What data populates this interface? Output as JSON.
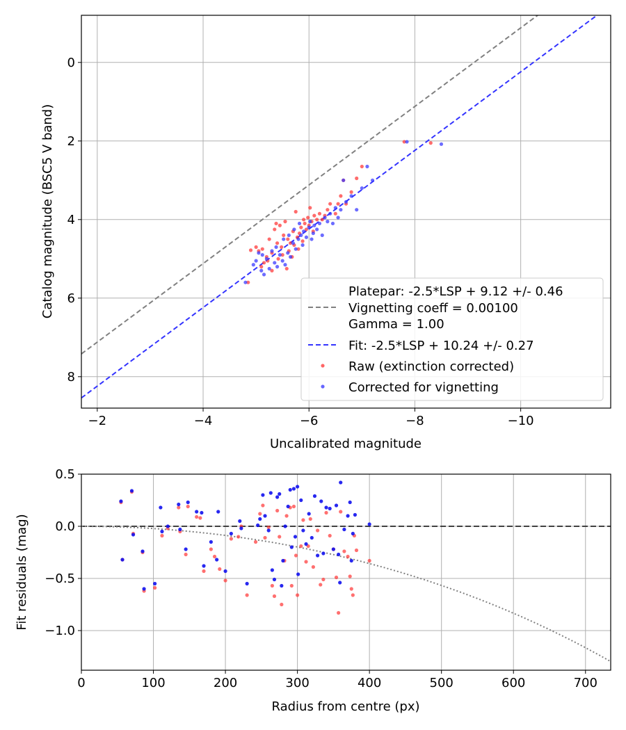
{
  "chart_data": [
    {
      "type": "scatter",
      "xlabel": "Uncalibrated magnitude",
      "ylabel": "Catalog magnitude (BSC5 V band)",
      "xlim": [
        -1.7,
        -11.7
      ],
      "ylim": [
        8.8,
        -1.2
      ],
      "x_inverted": true,
      "y_inverted": true,
      "xticks": [
        -2,
        -4,
        -6,
        -8,
        -10
      ],
      "xtick_labels": [
        "−2",
        "−4",
        "−6",
        "−8",
        "−10"
      ],
      "yticks": [
        0,
        2,
        4,
        6,
        8
      ],
      "ytick_labels": [
        "0",
        "2",
        "4",
        "6",
        "8"
      ],
      "grid": true,
      "legend_position": "lower-right",
      "legend": [
        {
          "label": "Platepar: -2.5*LSP + 9.12 +/- 0.46",
          "style": "none"
        },
        {
          "label": "Vignetting coeff = 0.00100",
          "style": "dashed",
          "color": "#808080"
        },
        {
          "label": "Gamma = 1.00",
          "style": "none"
        },
        {
          "label": "Fit: -2.5*LSP + 10.24 +/- 0.27",
          "style": "dashed",
          "color": "#3333ff"
        },
        {
          "label": "Raw (extinction corrected)",
          "style": "dot",
          "color": "#ff3333"
        },
        {
          "label": "Corrected for vignetting",
          "style": "dot",
          "color": "#3333ff"
        }
      ],
      "lines": [
        {
          "name": "Platepar",
          "color": "#808080",
          "style": "dashed",
          "intercept": 9.12
        },
        {
          "name": "Fit",
          "color": "#3333ff",
          "style": "dashed",
          "intercept": 10.24
        }
      ],
      "series": [
        {
          "name": "Raw (extinction corrected)",
          "color": "#ff3333",
          "points": [
            [
              -4.85,
              5.6
            ],
            [
              -4.9,
              4.78
            ],
            [
              -5.0,
              4.7
            ],
            [
              -5.05,
              4.8
            ],
            [
              -5.1,
              5.2
            ],
            [
              -5.12,
              4.75
            ],
            [
              -5.15,
              5.1
            ],
            [
              -5.2,
              4.95
            ],
            [
              -5.22,
              5.05
            ],
            [
              -5.25,
              4.5
            ],
            [
              -5.3,
              4.85
            ],
            [
              -5.3,
              5.3
            ],
            [
              -5.35,
              4.25
            ],
            [
              -5.38,
              4.1
            ],
            [
              -5.4,
              4.6
            ],
            [
              -5.42,
              5.0
            ],
            [
              -5.45,
              4.15
            ],
            [
              -5.48,
              4.7
            ],
            [
              -5.5,
              4.9
            ],
            [
              -5.52,
              4.4
            ],
            [
              -5.55,
              4.05
            ],
            [
              -5.58,
              5.25
            ],
            [
              -5.6,
              4.5
            ],
            [
              -5.62,
              4.8
            ],
            [
              -5.65,
              4.6
            ],
            [
              -5.68,
              4.95
            ],
            [
              -5.7,
              4.3
            ],
            [
              -5.72,
              4.65
            ],
            [
              -5.75,
              3.8
            ],
            [
              -5.78,
              4.45
            ],
            [
              -5.8,
              4.75
            ],
            [
              -5.82,
              4.35
            ],
            [
              -5.85,
              4.2
            ],
            [
              -5.88,
              4.55
            ],
            [
              -5.9,
              4.0
            ],
            [
              -5.92,
              4.1
            ],
            [
              -5.95,
              4.25
            ],
            [
              -5.98,
              3.95
            ],
            [
              -6.0,
              4.15
            ],
            [
              -6.02,
              3.7
            ],
            [
              -6.05,
              4.05
            ],
            [
              -6.08,
              4.3
            ],
            [
              -6.1,
              3.9
            ],
            [
              -6.15,
              4.0
            ],
            [
              -6.2,
              3.85
            ],
            [
              -6.25,
              4.0
            ],
            [
              -6.3,
              3.9
            ],
            [
              -6.35,
              3.75
            ],
            [
              -6.4,
              3.6
            ],
            [
              -6.5,
              3.85
            ],
            [
              -6.55,
              3.6
            ],
            [
              -6.6,
              3.4
            ],
            [
              -6.65,
              3.0
            ],
            [
              -6.7,
              3.6
            ],
            [
              -6.8,
              3.3
            ],
            [
              -6.9,
              2.95
            ],
            [
              -7.0,
              2.65
            ],
            [
              -7.8,
              2.02
            ],
            [
              -8.3,
              2.05
            ]
          ]
        },
        {
          "name": "Corrected for vignetting",
          "color": "#3333ff",
          "points": [
            [
              -4.8,
              5.6
            ],
            [
              -4.95,
              5.15
            ],
            [
              -5.0,
              5.05
            ],
            [
              -5.05,
              4.85
            ],
            [
              -5.1,
              5.3
            ],
            [
              -5.12,
              4.9
            ],
            [
              -5.15,
              5.4
            ],
            [
              -5.2,
              5.0
            ],
            [
              -5.25,
              5.25
            ],
            [
              -5.3,
              4.8
            ],
            [
              -5.35,
              5.1
            ],
            [
              -5.38,
              4.7
            ],
            [
              -5.4,
              5.2
            ],
            [
              -5.45,
              4.9
            ],
            [
              -5.5,
              5.05
            ],
            [
              -5.52,
              4.5
            ],
            [
              -5.55,
              5.15
            ],
            [
              -5.6,
              4.85
            ],
            [
              -5.62,
              4.4
            ],
            [
              -5.65,
              4.95
            ],
            [
              -5.7,
              4.6
            ],
            [
              -5.72,
              4.25
            ],
            [
              -5.75,
              4.75
            ],
            [
              -5.8,
              4.5
            ],
            [
              -5.82,
              4.1
            ],
            [
              -5.85,
              4.4
            ],
            [
              -5.88,
              4.65
            ],
            [
              -5.9,
              4.3
            ],
            [
              -5.95,
              4.45
            ],
            [
              -6.0,
              4.2
            ],
            [
              -6.02,
              4.05
            ],
            [
              -6.05,
              4.5
            ],
            [
              -6.08,
              4.35
            ],
            [
              -6.1,
              4.15
            ],
            [
              -6.15,
              4.25
            ],
            [
              -6.2,
              4.1
            ],
            [
              -6.25,
              4.4
            ],
            [
              -6.3,
              3.95
            ],
            [
              -6.35,
              4.05
            ],
            [
              -6.4,
              3.85
            ],
            [
              -6.45,
              4.1
            ],
            [
              -6.5,
              3.7
            ],
            [
              -6.55,
              3.95
            ],
            [
              -6.6,
              3.75
            ],
            [
              -6.65,
              3.0
            ],
            [
              -6.7,
              3.55
            ],
            [
              -6.8,
              3.4
            ],
            [
              -6.9,
              3.75
            ],
            [
              -7.0,
              3.2
            ],
            [
              -7.1,
              2.65
            ],
            [
              -7.2,
              3.0
            ],
            [
              -7.85,
              2.02
            ],
            [
              -8.5,
              2.08
            ]
          ]
        }
      ]
    },
    {
      "type": "scatter",
      "xlabel": "Radius from centre (px)",
      "ylabel": "Fit residuals (mag)",
      "xlim": [
        0,
        735
      ],
      "ylim": [
        -1.38,
        0.5
      ],
      "xticks": [
        0,
        100,
        200,
        300,
        400,
        500,
        600,
        700
      ],
      "xtick_labels": [
        "0",
        "100",
        "200",
        "300",
        "400",
        "500",
        "600",
        "700"
      ],
      "yticks": [
        0.5,
        0.0,
        -0.5,
        -1.0
      ],
      "ytick_labels": [
        "0.5",
        "0.0",
        "−0.5",
        "−1.0"
      ],
      "grid": true,
      "lines": [
        {
          "name": "Zero line",
          "color": "#404040",
          "style": "dashed"
        },
        {
          "name": "Vignetting model",
          "color": "#808080",
          "style": "dotted",
          "vignetting_coeff": 0.001,
          "gamma": 1.0
        }
      ],
      "series": [
        {
          "name": "Raw (extinction corrected)",
          "color": "#ff3333",
          "points": [
            [
              55,
              0.23
            ],
            [
              57,
              -0.32
            ],
            [
              70,
              0.33
            ],
            [
              72,
              -0.07
            ],
            [
              85,
              -0.25
            ],
            [
              87,
              -0.62
            ],
            [
              102,
              -0.59
            ],
            [
              112,
              -0.09
            ],
            [
              120,
              -0.02
            ],
            [
              135,
              0.18
            ],
            [
              137,
              -0.05
            ],
            [
              145,
              -0.27
            ],
            [
              148,
              0.19
            ],
            [
              160,
              0.09
            ],
            [
              165,
              0.08
            ],
            [
              170,
              -0.43
            ],
            [
              180,
              -0.22
            ],
            [
              185,
              -0.29
            ],
            [
              192,
              -0.41
            ],
            [
              200,
              -0.52
            ],
            [
              208,
              -0.12
            ],
            [
              218,
              -0.1
            ],
            [
              222,
              0.0
            ],
            [
              230,
              -0.66
            ],
            [
              242,
              -0.15
            ],
            [
              248,
              0.12
            ],
            [
              252,
              0.2
            ],
            [
              255,
              -0.11
            ],
            [
              260,
              -0.01
            ],
            [
              265,
              -0.57
            ],
            [
              268,
              -0.67
            ],
            [
              272,
              0.15
            ],
            [
              275,
              -0.1
            ],
            [
              278,
              -0.75
            ],
            [
              282,
              -0.33
            ],
            [
              285,
              0.1
            ],
            [
              290,
              0.18
            ],
            [
              292,
              -0.57
            ],
            [
              295,
              0.19
            ],
            [
              298,
              -0.28
            ],
            [
              300,
              -0.66
            ],
            [
              305,
              -0.19
            ],
            [
              308,
              0.06
            ],
            [
              312,
              -0.34
            ],
            [
              315,
              -0.19
            ],
            [
              318,
              0.07
            ],
            [
              322,
              -0.39
            ],
            [
              328,
              -0.04
            ],
            [
              332,
              -0.56
            ],
            [
              336,
              -0.51
            ],
            [
              340,
              0.13
            ],
            [
              345,
              -0.09
            ],
            [
              350,
              -0.22
            ],
            [
              354,
              -0.49
            ],
            [
              357,
              -0.83
            ],
            [
              360,
              0.14
            ],
            [
              365,
              -0.24
            ],
            [
              370,
              -0.29
            ],
            [
              373,
              -0.48
            ],
            [
              375,
              -0.6
            ],
            [
              377,
              -0.66
            ],
            [
              379,
              -0.09
            ],
            [
              382,
              -0.23
            ],
            [
              400,
              -0.33
            ]
          ]
        },
        {
          "name": "Corrected for vignetting",
          "color": "#1111ee",
          "points": [
            [
              55,
              0.24
            ],
            [
              57,
              -0.32
            ],
            [
              70,
              0.34
            ],
            [
              72,
              -0.08
            ],
            [
              85,
              -0.24
            ],
            [
              87,
              -0.6
            ],
            [
              102,
              -0.55
            ],
            [
              110,
              0.18
            ],
            [
              112,
              -0.05
            ],
            [
              120,
              0.0
            ],
            [
              135,
              0.21
            ],
            [
              137,
              -0.03
            ],
            [
              145,
              -0.22
            ],
            [
              148,
              0.23
            ],
            [
              160,
              0.14
            ],
            [
              167,
              0.13
            ],
            [
              170,
              -0.38
            ],
            [
              180,
              -0.15
            ],
            [
              188,
              -0.32
            ],
            [
              190,
              0.14
            ],
            [
              200,
              -0.43
            ],
            [
              208,
              -0.07
            ],
            [
              220,
              0.05
            ],
            [
              222,
              -0.02
            ],
            [
              230,
              -0.55
            ],
            [
              245,
              0.01
            ],
            [
              248,
              0.07
            ],
            [
              252,
              0.3
            ],
            [
              255,
              0.1
            ],
            [
              260,
              -0.04
            ],
            [
              263,
              0.32
            ],
            [
              265,
              -0.42
            ],
            [
              268,
              -0.51
            ],
            [
              272,
              0.28
            ],
            [
              275,
              0.31
            ],
            [
              278,
              -0.57
            ],
            [
              280,
              -0.33
            ],
            [
              283,
              0.0
            ],
            [
              287,
              0.19
            ],
            [
              290,
              0.35
            ],
            [
              292,
              -0.2
            ],
            [
              295,
              0.36
            ],
            [
              297,
              -0.1
            ],
            [
              300,
              0.38
            ],
            [
              301,
              -0.46
            ],
            [
              305,
              0.25
            ],
            [
              308,
              -0.04
            ],
            [
              312,
              -0.17
            ],
            [
              316,
              0.12
            ],
            [
              320,
              -0.11
            ],
            [
              324,
              0.29
            ],
            [
              328,
              -0.28
            ],
            [
              333,
              0.24
            ],
            [
              336,
              -0.26
            ],
            [
              340,
              0.18
            ],
            [
              345,
              0.17
            ],
            [
              350,
              -0.22
            ],
            [
              354,
              0.2
            ],
            [
              357,
              -0.27
            ],
            [
              359,
              -0.54
            ],
            [
              360,
              0.42
            ],
            [
              365,
              -0.03
            ],
            [
              370,
              0.1
            ],
            [
              373,
              0.23
            ],
            [
              375,
              -0.33
            ],
            [
              377,
              -0.07
            ],
            [
              380,
              0.11
            ],
            [
              400,
              0.02
            ]
          ]
        }
      ]
    }
  ]
}
